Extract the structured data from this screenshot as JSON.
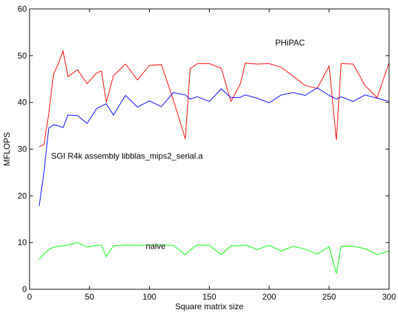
{
  "chart_data": {
    "type": "line",
    "title": "",
    "xlabel": "Square matrix size",
    "ylabel": "MFLOPS",
    "xlim": [
      0,
      300
    ],
    "ylim": [
      0,
      60
    ],
    "xticks": [
      0,
      50,
      100,
      150,
      200,
      250,
      300
    ],
    "yticks": [
      0,
      10,
      20,
      30,
      40,
      50,
      60
    ],
    "grid": false,
    "legend": "none",
    "series": [
      {
        "name": "PHiPAC",
        "color": "#ff0000",
        "x": [
          8,
          12,
          16,
          20,
          24,
          28,
          32,
          40,
          48,
          56,
          60,
          64,
          70,
          80,
          90,
          100,
          110,
          120,
          130,
          134,
          140,
          150,
          160,
          168,
          176,
          180,
          190,
          200,
          210,
          220,
          230,
          240,
          250,
          256,
          260,
          270,
          280,
          290,
          300
        ],
        "y": [
          30.5,
          31,
          37.5,
          46,
          48.3,
          51,
          45.5,
          47,
          44,
          46.3,
          46.7,
          40,
          45.7,
          48.2,
          44.8,
          47.9,
          48.1,
          40.5,
          32.2,
          47.2,
          48.3,
          48.3,
          47.3,
          40.2,
          44,
          48.4,
          48.2,
          48.3,
          47.5,
          45.6,
          43.6,
          43,
          47.8,
          32,
          48.3,
          48.2,
          43.6,
          41,
          48.5
        ]
      },
      {
        "name": "SGI R4k assembly libblas_mips2_serial.a",
        "color": "#0000ff",
        "x": [
          8,
          12,
          16,
          20,
          24,
          28,
          32,
          40,
          48,
          56,
          60,
          64,
          70,
          80,
          90,
          100,
          110,
          120,
          130,
          134,
          140,
          150,
          160,
          168,
          176,
          180,
          190,
          200,
          210,
          220,
          230,
          240,
          250,
          256,
          260,
          270,
          280,
          290,
          300
        ],
        "y": [
          17.8,
          25,
          34.5,
          35.2,
          35,
          34.6,
          37.3,
          37.2,
          35.5,
          38.7,
          39.2,
          39.7,
          37.3,
          41.5,
          39,
          40.3,
          39.1,
          42.1,
          41.6,
          40.7,
          41.2,
          40.2,
          42.9,
          41,
          41.1,
          41.6,
          40.9,
          39.9,
          41.6,
          42.1,
          41.5,
          43.1,
          41.5,
          40.7,
          41.2,
          40.2,
          41.6,
          40.9,
          40.2
        ]
      },
      {
        "name": "naive",
        "color": "#00ff00",
        "x": [
          8,
          12,
          16,
          20,
          24,
          28,
          32,
          40,
          48,
          56,
          60,
          64,
          70,
          80,
          90,
          100,
          110,
          120,
          130,
          134,
          140,
          150,
          160,
          168,
          176,
          180,
          190,
          200,
          210,
          220,
          230,
          240,
          250,
          256,
          260,
          270,
          280,
          290,
          300
        ],
        "y": [
          6.4,
          7.5,
          8.5,
          9,
          9.2,
          9.3,
          9.5,
          10,
          9,
          9.4,
          9.4,
          7,
          9.3,
          9.5,
          9.4,
          9.5,
          9.5,
          9.4,
          7.4,
          8.4,
          9.5,
          9.4,
          7.4,
          9.3,
          9.3,
          9.5,
          8.5,
          9.4,
          8.2,
          9.2,
          8.6,
          7.5,
          9.1,
          3.4,
          9.2,
          9.2,
          8.7,
          7.4,
          8.2
        ]
      }
    ],
    "annotations": [
      {
        "text": "PHiPAC",
        "x": 205,
        "y": 52.2
      },
      {
        "text": "SGI R4k assembly libblas_mips2_serial.a",
        "x": 18,
        "y": 27.9
      },
      {
        "text": "naive",
        "x": 97,
        "y": 8.6
      }
    ]
  }
}
